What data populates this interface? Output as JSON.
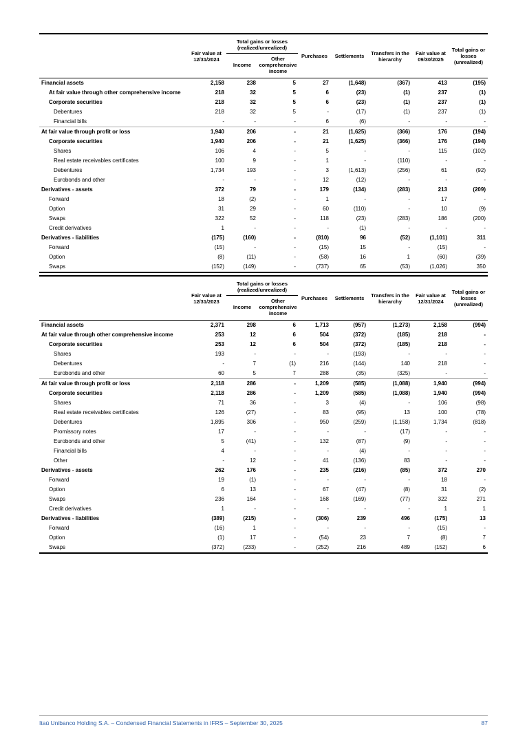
{
  "page": {
    "footer_text": "Itaú Unibanco Holding S.A. – Condensed Financial Statements in IFRS – September 30, 2025",
    "page_number": "87",
    "accent_color": "#2e5fa7"
  },
  "tables": [
    {
      "header": {
        "fair_value_start_line1": "Fair value at",
        "fair_value_start_line2": "12/31/2024",
        "gains_group_line1": "Total gains or losses",
        "gains_group_line2": "(realized/unrealized)",
        "income": "Income",
        "oci": "Other comprehensive income",
        "purchases": "Purchases",
        "settlements": "Settlements",
        "transfers": "Transfers in the hierarchy",
        "fair_value_end_line1": "Fair value at",
        "fair_value_end_line2": "09/30/2025",
        "total_gains": "Total gains or losses (unrealized)"
      },
      "rows": [
        {
          "label": "Financial assets",
          "bold": true,
          "indent": 0,
          "values": [
            "2,158",
            "238",
            "5",
            "27",
            "(1,648)",
            "(367)",
            "413",
            "(195)"
          ]
        },
        {
          "label": "At fair value through other comprehensive income",
          "bold": true,
          "indent": 1,
          "values": [
            "218",
            "32",
            "5",
            "6",
            "(23)",
            "(1)",
            "237",
            "(1)"
          ]
        },
        {
          "label": "Corporate securities",
          "bold": true,
          "indent": 1,
          "values": [
            "218",
            "32",
            "5",
            "6",
            "(23)",
            "(1)",
            "237",
            "(1)"
          ]
        },
        {
          "label": "Debentures",
          "bold": false,
          "indent": 2,
          "values": [
            "218",
            "32",
            "5",
            "-",
            "(17)",
            "(1)",
            "237",
            "(1)"
          ]
        },
        {
          "label": "Financial bills",
          "bold": false,
          "indent": 2,
          "values": [
            "-",
            "-",
            "-",
            "6",
            "(6)",
            "-",
            "-",
            "-"
          ]
        },
        {
          "label": "At fair value through profit or loss",
          "bold": true,
          "indent": 0,
          "sep": true,
          "values": [
            "1,940",
            "206",
            "-",
            "21",
            "(1,625)",
            "(366)",
            "176",
            "(194)"
          ]
        },
        {
          "label": "Corporate securities",
          "bold": true,
          "indent": 1,
          "values": [
            "1,940",
            "206",
            "-",
            "21",
            "(1,625)",
            "(366)",
            "176",
            "(194)"
          ]
        },
        {
          "label": "Shares",
          "bold": false,
          "indent": 2,
          "values": [
            "106",
            "4",
            "-",
            "5",
            "-",
            "-",
            "115",
            "(102)"
          ]
        },
        {
          "label": "Real estate receivables certificates",
          "bold": false,
          "indent": 2,
          "values": [
            "100",
            "9",
            "-",
            "1",
            "-",
            "(110)",
            "-",
            "-"
          ]
        },
        {
          "label": "Debentures",
          "bold": false,
          "indent": 2,
          "values": [
            "1,734",
            "193",
            "-",
            "3",
            "(1,613)",
            "(256)",
            "61",
            "(92)"
          ]
        },
        {
          "label": "Eurobonds and other",
          "bold": false,
          "indent": 2,
          "values": [
            "-",
            "-",
            "-",
            "12",
            "(12)",
            "-",
            "-",
            "-"
          ]
        },
        {
          "label": "Derivatives - assets",
          "bold": true,
          "indent": 0,
          "values": [
            "372",
            "79",
            "-",
            "179",
            "(134)",
            "(283)",
            "213",
            "(209)"
          ]
        },
        {
          "label": "Forward",
          "bold": false,
          "indent": 1,
          "values": [
            "18",
            "(2)",
            "-",
            "1",
            "-",
            "-",
            "17",
            "-"
          ]
        },
        {
          "label": "Option",
          "bold": false,
          "indent": 1,
          "values": [
            "31",
            "29",
            "-",
            "60",
            "(110)",
            "-",
            "10",
            "(9)"
          ]
        },
        {
          "label": "Swaps",
          "bold": false,
          "indent": 1,
          "values": [
            "322",
            "52",
            "-",
            "118",
            "(23)",
            "(283)",
            "186",
            "(200)"
          ]
        },
        {
          "label": "Credit derivatives",
          "bold": false,
          "indent": 1,
          "values": [
            "1",
            "-",
            "-",
            "-",
            "(1)",
            "-",
            "-",
            "-"
          ]
        },
        {
          "label": "Derivatives - liabilities",
          "bold": true,
          "indent": 0,
          "values": [
            "(175)",
            "(160)",
            "-",
            "(810)",
            "96",
            "(52)",
            "(1,101)",
            "311"
          ]
        },
        {
          "label": "Forward",
          "bold": false,
          "indent": 1,
          "values": [
            "(15)",
            "-",
            "-",
            "(15)",
            "15",
            "-",
            "(15)",
            "-"
          ]
        },
        {
          "label": "Option",
          "bold": false,
          "indent": 1,
          "values": [
            "(8)",
            "(11)",
            "-",
            "(58)",
            "16",
            "1",
            "(60)",
            "(39)"
          ]
        },
        {
          "label": "Swaps",
          "bold": false,
          "indent": 1,
          "values": [
            "(152)",
            "(149)",
            "-",
            "(737)",
            "65",
            "(53)",
            "(1,026)",
            "350"
          ]
        }
      ]
    },
    {
      "header": {
        "fair_value_start_line1": "Fair value at",
        "fair_value_start_line2": "12/31/2023",
        "gains_group_line1": "Total gains or losses",
        "gains_group_line2": "(realized/unrealized)",
        "income": "Income",
        "oci": "Other comprehensive income",
        "purchases": "Purchases",
        "settlements": "Settlements",
        "transfers": "Transfers in the hierarchy",
        "fair_value_end_line1": "Fair value at",
        "fair_value_end_line2": "12/31/2024",
        "total_gains": "Total gains or losses (unrealized)"
      },
      "rows": [
        {
          "label": "Financial assets",
          "bold": true,
          "indent": 0,
          "values": [
            "2,371",
            "298",
            "6",
            "1,713",
            "(957)",
            "(1,273)",
            "2,158",
            "(994)"
          ]
        },
        {
          "label": "At fair value through other comprehensive income",
          "bold": true,
          "indent": 0,
          "values": [
            "253",
            "12",
            "6",
            "504",
            "(372)",
            "(185)",
            "218",
            "-"
          ]
        },
        {
          "label": "Corporate securities",
          "bold": true,
          "indent": 1,
          "values": [
            "253",
            "12",
            "6",
            "504",
            "(372)",
            "(185)",
            "218",
            "-"
          ]
        },
        {
          "label": "Shares",
          "bold": false,
          "indent": 2,
          "values": [
            "193",
            "-",
            "-",
            "-",
            "(193)",
            "-",
            "-",
            "-"
          ]
        },
        {
          "label": "Debentures",
          "bold": false,
          "indent": 2,
          "values": [
            "-",
            "7",
            "(1)",
            "216",
            "(144)",
            "140",
            "218",
            "-"
          ]
        },
        {
          "label": "Eurobonds and other",
          "bold": false,
          "indent": 2,
          "values": [
            "60",
            "5",
            "7",
            "288",
            "(35)",
            "(325)",
            "-",
            "-"
          ]
        },
        {
          "label": "At fair value through profit or loss",
          "bold": true,
          "indent": 0,
          "sep": true,
          "values": [
            "2,118",
            "286",
            "-",
            "1,209",
            "(585)",
            "(1,088)",
            "1,940",
            "(994)"
          ]
        },
        {
          "label": "Corporate securities",
          "bold": true,
          "indent": 1,
          "values": [
            "2,118",
            "286",
            "-",
            "1,209",
            "(585)",
            "(1,088)",
            "1,940",
            "(994)"
          ]
        },
        {
          "label": "Shares",
          "bold": false,
          "indent": 2,
          "values": [
            "71",
            "36",
            "-",
            "3",
            "(4)",
            "-",
            "106",
            "(98)"
          ]
        },
        {
          "label": "Real estate receivables certificates",
          "bold": false,
          "indent": 2,
          "values": [
            "126",
            "(27)",
            "-",
            "83",
            "(95)",
            "13",
            "100",
            "(78)"
          ]
        },
        {
          "label": "Debentures",
          "bold": false,
          "indent": 2,
          "values": [
            "1,895",
            "306",
            "-",
            "950",
            "(259)",
            "(1,158)",
            "1,734",
            "(818)"
          ]
        },
        {
          "label": "Promissory notes",
          "bold": false,
          "indent": 2,
          "values": [
            "17",
            "-",
            "-",
            "-",
            "-",
            "(17)",
            "-",
            "-"
          ]
        },
        {
          "label": "Eurobonds and other",
          "bold": false,
          "indent": 2,
          "values": [
            "5",
            "(41)",
            "-",
            "132",
            "(87)",
            "(9)",
            "-",
            "-"
          ]
        },
        {
          "label": "Financial bills",
          "bold": false,
          "indent": 2,
          "values": [
            "4",
            "-",
            "-",
            "-",
            "(4)",
            "-",
            "-",
            "-"
          ]
        },
        {
          "label": "Other",
          "bold": false,
          "indent": 2,
          "values": [
            "-",
            "12",
            "-",
            "41",
            "(136)",
            "83",
            "-",
            "-"
          ]
        },
        {
          "label": "Derivatives - assets",
          "bold": true,
          "indent": 0,
          "values": [
            "262",
            "176",
            "-",
            "235",
            "(216)",
            "(85)",
            "372",
            "270"
          ]
        },
        {
          "label": "Forward",
          "bold": false,
          "indent": 1,
          "values": [
            "19",
            "(1)",
            "-",
            "-",
            "-",
            "-",
            "18",
            "-"
          ]
        },
        {
          "label": "Option",
          "bold": false,
          "indent": 1,
          "values": [
            "6",
            "13",
            "-",
            "67",
            "(47)",
            "(8)",
            "31",
            "(2)"
          ]
        },
        {
          "label": "Swaps",
          "bold": false,
          "indent": 1,
          "values": [
            "236",
            "164",
            "-",
            "168",
            "(169)",
            "(77)",
            "322",
            "271"
          ]
        },
        {
          "label": "Credit derivatives",
          "bold": false,
          "indent": 1,
          "values": [
            "1",
            "-",
            "-",
            "-",
            "-",
            "-",
            "1",
            "1"
          ]
        },
        {
          "label": "Derivatives - liabilities",
          "bold": true,
          "indent": 0,
          "values": [
            "(389)",
            "(215)",
            "-",
            "(306)",
            "239",
            "496",
            "(175)",
            "13"
          ]
        },
        {
          "label": "Forward",
          "bold": false,
          "indent": 1,
          "values": [
            "(16)",
            "1",
            "-",
            "-",
            "-",
            "-",
            "(15)",
            "-"
          ]
        },
        {
          "label": "Option",
          "bold": false,
          "indent": 1,
          "values": [
            "(1)",
            "17",
            "-",
            "(54)",
            "23",
            "7",
            "(8)",
            "7"
          ]
        },
        {
          "label": "Swaps",
          "bold": false,
          "indent": 1,
          "values": [
            "(372)",
            "(233)",
            "-",
            "(252)",
            "216",
            "489",
            "(152)",
            "6"
          ]
        }
      ]
    }
  ]
}
